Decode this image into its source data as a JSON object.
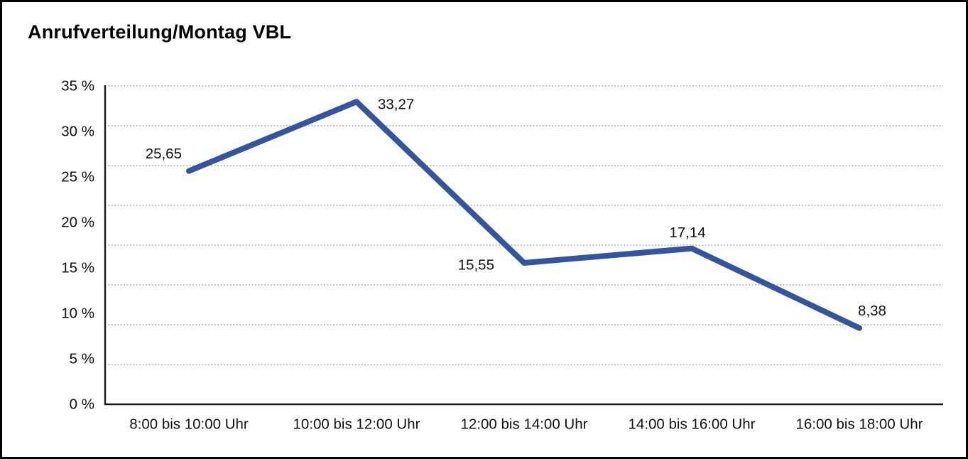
{
  "chart_data": {
    "type": "line",
    "title": "Anrufverteilung/Montag VBL",
    "categories": [
      "8:00 bis 10:00 Uhr",
      "10:00 bis 12:00 Uhr",
      "12:00 bis 14:00 Uhr",
      "14:00 bis 16:00 Uhr",
      "16:00 bis 18:00 Uhr"
    ],
    "values": [
      25.65,
      33.27,
      15.55,
      17.14,
      8.38
    ],
    "point_labels": [
      "25,65",
      "33,27",
      "15,55",
      "17,14",
      "8,38"
    ],
    "y_tick_labels": [
      "35 %",
      "30 %",
      "25 %",
      "20 %",
      "15 %",
      "10 %",
      "5 %",
      "0 %"
    ],
    "ylim": [
      0,
      35
    ],
    "xlabel": "",
    "ylabel": "",
    "legend": "none",
    "grid": "horizontal dotted",
    "line_color": "#35549E",
    "axis_color": "#1a1a1a",
    "grid_color": "#8f8f8f",
    "text_color": "#111111"
  }
}
